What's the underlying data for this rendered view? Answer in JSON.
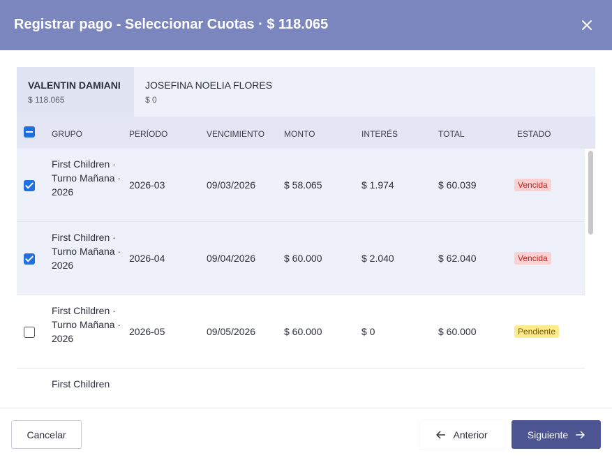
{
  "header": {
    "title": "Registrar pago - Seleccionar Cuotas · $ 118.065"
  },
  "tabs": [
    {
      "name": "VALENTIN DAMIANI",
      "amount": "$ 118.065",
      "active": true
    },
    {
      "name": "JOSEFINA NOELIA FLORES",
      "amount": "$ 0",
      "active": false
    }
  ],
  "table": {
    "columns": [
      "GRUPO",
      "PERÍODO",
      "VENCIMIENTO",
      "MONTO",
      "INTERÉS",
      "TOTAL",
      "ESTADO"
    ],
    "rows": [
      {
        "selected": true,
        "cells": [
          "First Children · Turno Mañana · 2026",
          "2026-03",
          "09/03/2026",
          "$ 58.065",
          "$ 1.974",
          "$ 60.039",
          "Vencida"
        ],
        "badge_color": "#fbd0d0",
        "badge_text_color": "#b3261e"
      },
      {
        "selected": true,
        "cells": [
          "First Children · Turno Mañana · 2026",
          "2026-04",
          "09/04/2026",
          "$ 60.000",
          "$ 2.040",
          "$ 62.040",
          "Vencida"
        ],
        "badge_color": "#fbd0d0",
        "badge_text_color": "#b3261e"
      },
      {
        "selected": false,
        "cells": [
          "First Children · Turno Mañana · 2026",
          "2026-05",
          "09/05/2026",
          "$ 60.000",
          "$ 0",
          "$ 60.000",
          "Pendiente"
        ],
        "badge_color": "#fdea8c",
        "badge_text_color": "#7a5600"
      },
      {
        "selected": false,
        "cells": [
          "First Children"
        ]
      }
    ]
  },
  "footer": {
    "cancel": "Cancelar",
    "previous": "Anterior",
    "next": "Siguiente"
  }
}
